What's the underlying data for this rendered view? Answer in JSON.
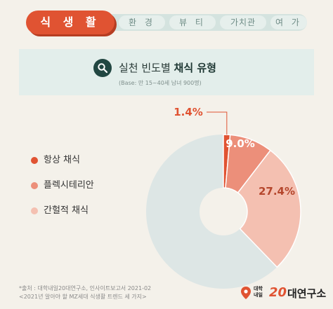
{
  "nav": {
    "active": "식 생 활",
    "tabs": [
      "환 경",
      "뷰 티",
      "가치관",
      "여 가"
    ]
  },
  "banner": {
    "title_plain": "실천 빈도별 ",
    "title_bold": "채식 유형",
    "subtitle": "(Base: 만 15~40세 남녀 900명)",
    "icon": "search-icon"
  },
  "chart_data": {
    "type": "pie",
    "donut": true,
    "labels": [
      "항상 채식",
      "플렉시테리안",
      "간헐적 채식"
    ],
    "values": [
      1.4,
      9.0,
      27.4
    ],
    "value_labels": [
      "1.4%",
      "9.0%",
      "27.4%"
    ],
    "remainder": 62.2,
    "colors": [
      "#e05332",
      "#ec8f7a",
      "#f4c0b1"
    ],
    "remainder_color": "#dde6e5",
    "legend": "left"
  },
  "footer": {
    "source_line1": "*출처 : 대학내일20대연구소, 인사이트보고서 2021-02",
    "source_line2": "<2021년 알아야 할 MZ세대 식생활 트렌드 세 가지>",
    "logo_small_1": "대학",
    "logo_small_2": "내일",
    "logo_num": "20",
    "logo_text": "대연구소"
  }
}
